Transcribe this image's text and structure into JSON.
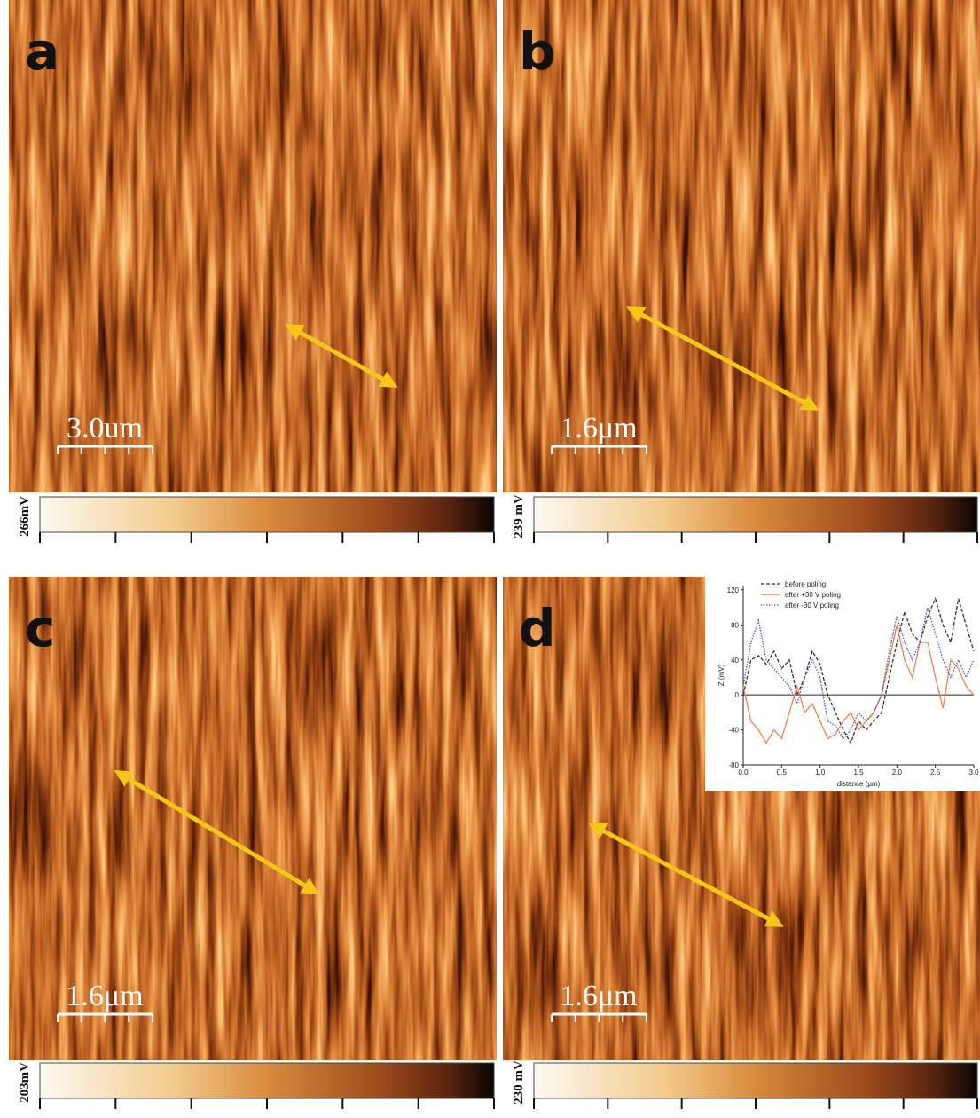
{
  "panels": [
    {
      "label": "a",
      "scale_bar": "3.0um",
      "colorbar_label": "266mV"
    },
    {
      "label": "b",
      "scale_bar": "1.6μm",
      "colorbar_label": "239 mV"
    },
    {
      "label": "c",
      "scale_bar": "1.6μm",
      "colorbar_label": "203mV"
    },
    {
      "label": "d",
      "scale_bar": "1.6μm",
      "colorbar_label": "230 mV"
    }
  ],
  "chart_data": {
    "type": "line",
    "x": [
      0,
      0.1,
      0.2,
      0.3,
      0.4,
      0.5,
      0.6,
      0.7,
      0.8,
      0.9,
      1,
      1.1,
      1.2,
      1.3,
      1.4,
      1.5,
      1.6,
      1.7,
      1.8,
      1.9,
      2,
      2.1,
      2.2,
      2.3,
      2.4,
      2.5,
      2.6,
      2.7,
      2.8,
      2.9,
      3
    ],
    "series": [
      {
        "name": "before poling",
        "color": "#333333",
        "style": "dashed",
        "values": [
          0,
          40,
          45,
          35,
          50,
          30,
          40,
          0,
          20,
          50,
          35,
          0,
          -20,
          -40,
          -55,
          -30,
          -40,
          -30,
          -20,
          20,
          60,
          95,
          70,
          60,
          90,
          110,
          80,
          60,
          110,
          80,
          50
        ]
      },
      {
        "name": "after +30 V poling",
        "color": "#f08050",
        "style": "solid",
        "values": [
          10,
          -30,
          -40,
          -55,
          -40,
          -50,
          -20,
          10,
          -20,
          -10,
          -30,
          -50,
          -45,
          -30,
          -20,
          -40,
          -30,
          -20,
          0,
          40,
          80,
          40,
          20,
          60,
          60,
          20,
          -15,
          40,
          30,
          10,
          0
        ]
      },
      {
        "name": "after -30 V poling",
        "color": "#4455cc",
        "style": "dotted",
        "values": [
          10,
          60,
          85,
          40,
          30,
          20,
          10,
          -10,
          20,
          40,
          20,
          -30,
          -35,
          -50,
          -40,
          -20,
          -30,
          -20,
          0,
          50,
          90,
          60,
          40,
          60,
          100,
          70,
          40,
          20,
          40,
          20,
          40
        ]
      }
    ],
    "xlim": [
      0,
      3
    ],
    "xticks": [
      {
        "value": 0,
        "label": "0.0"
      },
      {
        "value": 0.5,
        "label": "0.5"
      },
      {
        "value": 1,
        "label": "1.0"
      },
      {
        "value": 1.5,
        "label": "1.5"
      },
      {
        "value": 2,
        "label": "2.0"
      },
      {
        "value": 2.5,
        "label": "2.5"
      },
      {
        "value": 3,
        "label": "3.0"
      }
    ],
    "ylim": [
      -80,
      125
    ],
    "yticks": [
      -80,
      -40,
      0,
      40,
      80,
      120
    ],
    "xlabel": "distance (μm)",
    "ylabel": "Z (mV)"
  }
}
